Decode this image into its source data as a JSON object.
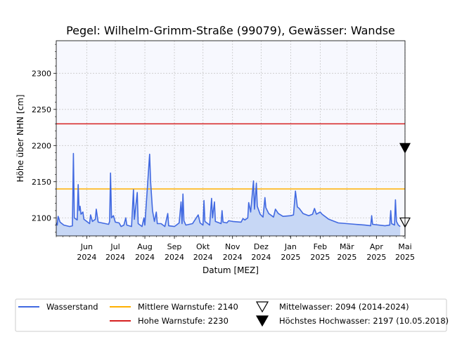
{
  "chart_data": {
    "type": "line",
    "title": "Pegel:  Wilhelm-Grimm-Straße (99079), Gewässer:  Wandse",
    "xlabel": "Datum [MEZ]",
    "ylabel": "Höhe über NHN [cm]",
    "ylim": [
      2075,
      2345
    ],
    "y_ticks": [
      2100,
      2150,
      2200,
      2250,
      2300
    ],
    "x_range": [
      "2024-04-30",
      "2025-05-01"
    ],
    "x_ticks": [
      {
        "date": "2024-06-01",
        "label": [
          "Jun",
          "2024"
        ]
      },
      {
        "date": "2024-07-01",
        "label": [
          "Jul",
          "2024"
        ]
      },
      {
        "date": "2024-08-01",
        "label": [
          "Aug",
          "2024"
        ]
      },
      {
        "date": "2024-09-01",
        "label": [
          "Sep",
          "2024"
        ]
      },
      {
        "date": "2024-10-01",
        "label": [
          "Okt",
          "2024"
        ]
      },
      {
        "date": "2024-11-01",
        "label": [
          "Nov",
          "2024"
        ]
      },
      {
        "date": "2024-12-01",
        "label": [
          "Dez",
          "2024"
        ]
      },
      {
        "date": "2025-01-01",
        "label": [
          "Jan",
          "2025"
        ]
      },
      {
        "date": "2025-02-01",
        "label": [
          "Feb",
          "2025"
        ]
      },
      {
        "date": "2025-03-01",
        "label": [
          "Mär",
          "2025"
        ]
      },
      {
        "date": "2025-04-01",
        "label": [
          "Apr",
          "2025"
        ]
      },
      {
        "date": "2025-05-01",
        "label": [
          "Mai",
          "2025"
        ]
      }
    ],
    "grid": true,
    "legend_position": "bottom",
    "series": [
      {
        "name": "Wasserstand",
        "color": "#4169E1",
        "fill": "#C7D7F5",
        "points": [
          [
            "2024-04-30",
            2093
          ],
          [
            "2024-05-01",
            2090
          ],
          [
            "2024-05-02",
            2102
          ],
          [
            "2024-05-04",
            2094
          ],
          [
            "2024-05-08",
            2090
          ],
          [
            "2024-05-14",
            2088
          ],
          [
            "2024-05-17",
            2089
          ],
          [
            "2024-05-18",
            2189
          ],
          [
            "2024-05-19",
            2100
          ],
          [
            "2024-05-22",
            2097
          ],
          [
            "2024-05-23",
            2146
          ],
          [
            "2024-05-24",
            2110
          ],
          [
            "2024-05-25",
            2116
          ],
          [
            "2024-05-26",
            2105
          ],
          [
            "2024-05-28",
            2108
          ],
          [
            "2024-05-29",
            2098
          ],
          [
            "2024-06-04",
            2092
          ],
          [
            "2024-06-05",
            2104
          ],
          [
            "2024-06-07",
            2095
          ],
          [
            "2024-06-10",
            2098
          ],
          [
            "2024-06-11",
            2112
          ],
          [
            "2024-06-13",
            2094
          ],
          [
            "2024-06-24",
            2091
          ],
          [
            "2024-06-25",
            2095
          ],
          [
            "2024-06-26",
            2162
          ],
          [
            "2024-06-27",
            2100
          ],
          [
            "2024-06-29",
            2103
          ],
          [
            "2024-07-01",
            2094
          ],
          [
            "2024-07-05",
            2093
          ],
          [
            "2024-07-07",
            2088
          ],
          [
            "2024-07-10",
            2090
          ],
          [
            "2024-07-12",
            2100
          ],
          [
            "2024-07-13",
            2090
          ],
          [
            "2024-07-18",
            2088
          ],
          [
            "2024-07-20",
            2139
          ],
          [
            "2024-07-21",
            2098
          ],
          [
            "2024-07-24",
            2135
          ],
          [
            "2024-07-25",
            2092
          ],
          [
            "2024-07-29",
            2088
          ],
          [
            "2024-07-31",
            2100
          ],
          [
            "2024-08-01",
            2090
          ],
          [
            "2024-08-06",
            2188
          ],
          [
            "2024-08-07",
            2150
          ],
          [
            "2024-08-09",
            2110
          ],
          [
            "2024-08-11",
            2095
          ],
          [
            "2024-08-13",
            2108
          ],
          [
            "2024-08-14",
            2092
          ],
          [
            "2024-08-18",
            2092
          ],
          [
            "2024-08-22",
            2088
          ],
          [
            "2024-08-25",
            2106
          ],
          [
            "2024-08-26",
            2089
          ],
          [
            "2024-09-01",
            2088
          ],
          [
            "2024-09-03",
            2090
          ],
          [
            "2024-09-06",
            2093
          ],
          [
            "2024-09-08",
            2122
          ],
          [
            "2024-09-09",
            2092
          ],
          [
            "2024-09-10",
            2133
          ],
          [
            "2024-09-11",
            2096
          ],
          [
            "2024-09-13",
            2090
          ],
          [
            "2024-09-20",
            2092
          ],
          [
            "2024-09-26",
            2104
          ],
          [
            "2024-09-28",
            2093
          ],
          [
            "2024-10-01",
            2090
          ],
          [
            "2024-10-02",
            2124
          ],
          [
            "2024-10-03",
            2095
          ],
          [
            "2024-10-08",
            2090
          ],
          [
            "2024-10-10",
            2127
          ],
          [
            "2024-10-11",
            2100
          ],
          [
            "2024-10-13",
            2122
          ],
          [
            "2024-10-14",
            2095
          ],
          [
            "2024-10-20",
            2092
          ],
          [
            "2024-10-21",
            2110
          ],
          [
            "2024-10-22",
            2094
          ],
          [
            "2024-10-26",
            2093
          ],
          [
            "2024-10-28",
            2096
          ],
          [
            "2024-11-01",
            2095
          ],
          [
            "2024-11-10",
            2094
          ],
          [
            "2024-11-12",
            2099
          ],
          [
            "2024-11-14",
            2097
          ],
          [
            "2024-11-17",
            2100
          ],
          [
            "2024-11-18",
            2121
          ],
          [
            "2024-11-20",
            2108
          ],
          [
            "2024-11-23",
            2151
          ],
          [
            "2024-11-24",
            2112
          ],
          [
            "2024-11-26",
            2148
          ],
          [
            "2024-11-27",
            2116
          ],
          [
            "2024-11-30",
            2105
          ],
          [
            "2024-12-03",
            2101
          ],
          [
            "2024-12-05",
            2128
          ],
          [
            "2024-12-06",
            2114
          ],
          [
            "2024-12-09",
            2106
          ],
          [
            "2024-12-14",
            2101
          ],
          [
            "2024-12-16",
            2112
          ],
          [
            "2024-12-19",
            2106
          ],
          [
            "2024-12-24",
            2102
          ],
          [
            "2025-01-01",
            2103
          ],
          [
            "2025-01-04",
            2104
          ],
          [
            "2025-01-06",
            2137
          ],
          [
            "2025-01-08",
            2115
          ],
          [
            "2025-01-10",
            2113
          ],
          [
            "2025-01-14",
            2106
          ],
          [
            "2025-01-20",
            2103
          ],
          [
            "2025-01-24",
            2105
          ],
          [
            "2025-01-26",
            2113
          ],
          [
            "2025-01-28",
            2105
          ],
          [
            "2025-02-01",
            2108
          ],
          [
            "2025-02-03",
            2105
          ],
          [
            "2025-02-10",
            2098
          ],
          [
            "2025-02-20",
            2093
          ],
          [
            "2025-03-01",
            2092
          ],
          [
            "2025-03-10",
            2091
          ],
          [
            "2025-03-20",
            2090
          ],
          [
            "2025-03-26",
            2089
          ],
          [
            "2025-03-27",
            2103
          ],
          [
            "2025-03-28",
            2091
          ],
          [
            "2025-04-10",
            2089
          ],
          [
            "2025-04-15",
            2090
          ],
          [
            "2025-04-16",
            2110
          ],
          [
            "2025-04-17",
            2092
          ],
          [
            "2025-04-20",
            2090
          ],
          [
            "2025-04-21",
            2125
          ],
          [
            "2025-04-22",
            2095
          ],
          [
            "2025-04-24",
            2090
          ],
          [
            "2025-04-26",
            2088
          ]
        ]
      },
      {
        "name": "Mittlere Warnstufe: 2140",
        "color": "#FFB000",
        "y": 2140
      },
      {
        "name": "Hohe Warnstufe: 2230",
        "color": "#D62020",
        "y": 2230
      },
      {
        "name": "Mittelwasser: 2094 (2014-2024)",
        "color": "#000000",
        "marker": "triangle-down-open",
        "date": "2025-05-01",
        "y": 2094
      },
      {
        "name": "Höchstes Hochwasser: 2197 (10.05.2018)",
        "color": "#000000",
        "marker": "triangle-down-filled",
        "date": "2025-05-01",
        "y": 2197
      }
    ]
  }
}
